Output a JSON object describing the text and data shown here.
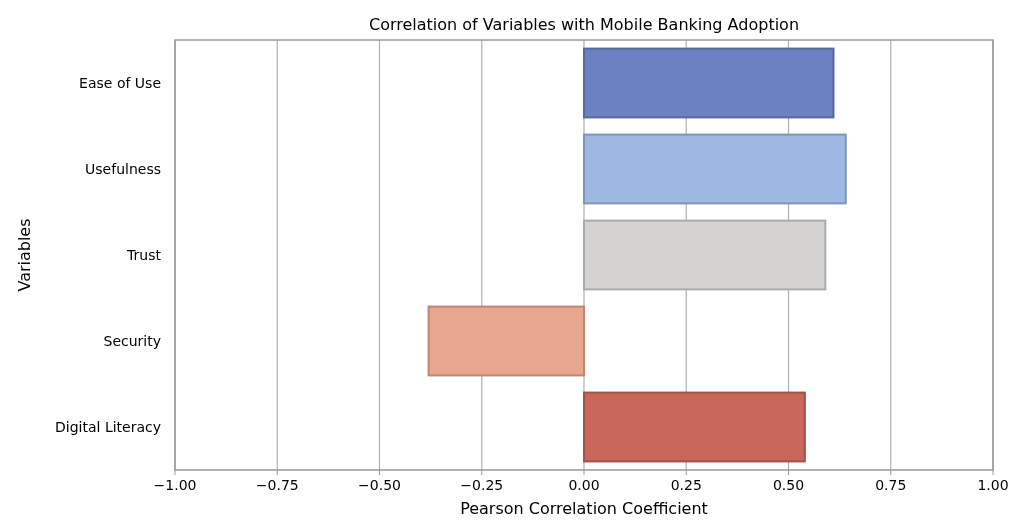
{
  "chart_data": {
    "type": "bar",
    "orientation": "horizontal",
    "title": "Correlation of Variables with Mobile Banking Adoption",
    "xlabel": "Pearson Correlation Coefficient",
    "ylabel": "Variables",
    "categories": [
      "Ease of Use",
      "Usefulness",
      "Trust",
      "Security",
      "Digital Literacy"
    ],
    "values": [
      0.61,
      0.64,
      0.59,
      -0.38,
      0.54
    ],
    "colors": [
      "#6a82c2",
      "#9db8e2",
      "#d5d2d2",
      "#e6a78e",
      "#c9675a"
    ],
    "xlim": [
      -1,
      1
    ],
    "xticks": [
      {
        "value": -1,
        "label": "−1.00"
      },
      {
        "value": -0.75,
        "label": "−0.75"
      },
      {
        "value": -0.5,
        "label": "−0.50"
      },
      {
        "value": -0.25,
        "label": "−0.25"
      },
      {
        "value": 0,
        "label": "0.00"
      },
      {
        "value": 0.25,
        "label": "0.25"
      },
      {
        "value": 0.5,
        "label": "0.50"
      },
      {
        "value": 0.75,
        "label": "0.75"
      },
      {
        "value": 1,
        "label": "1.00"
      }
    ],
    "grid": "x"
  }
}
